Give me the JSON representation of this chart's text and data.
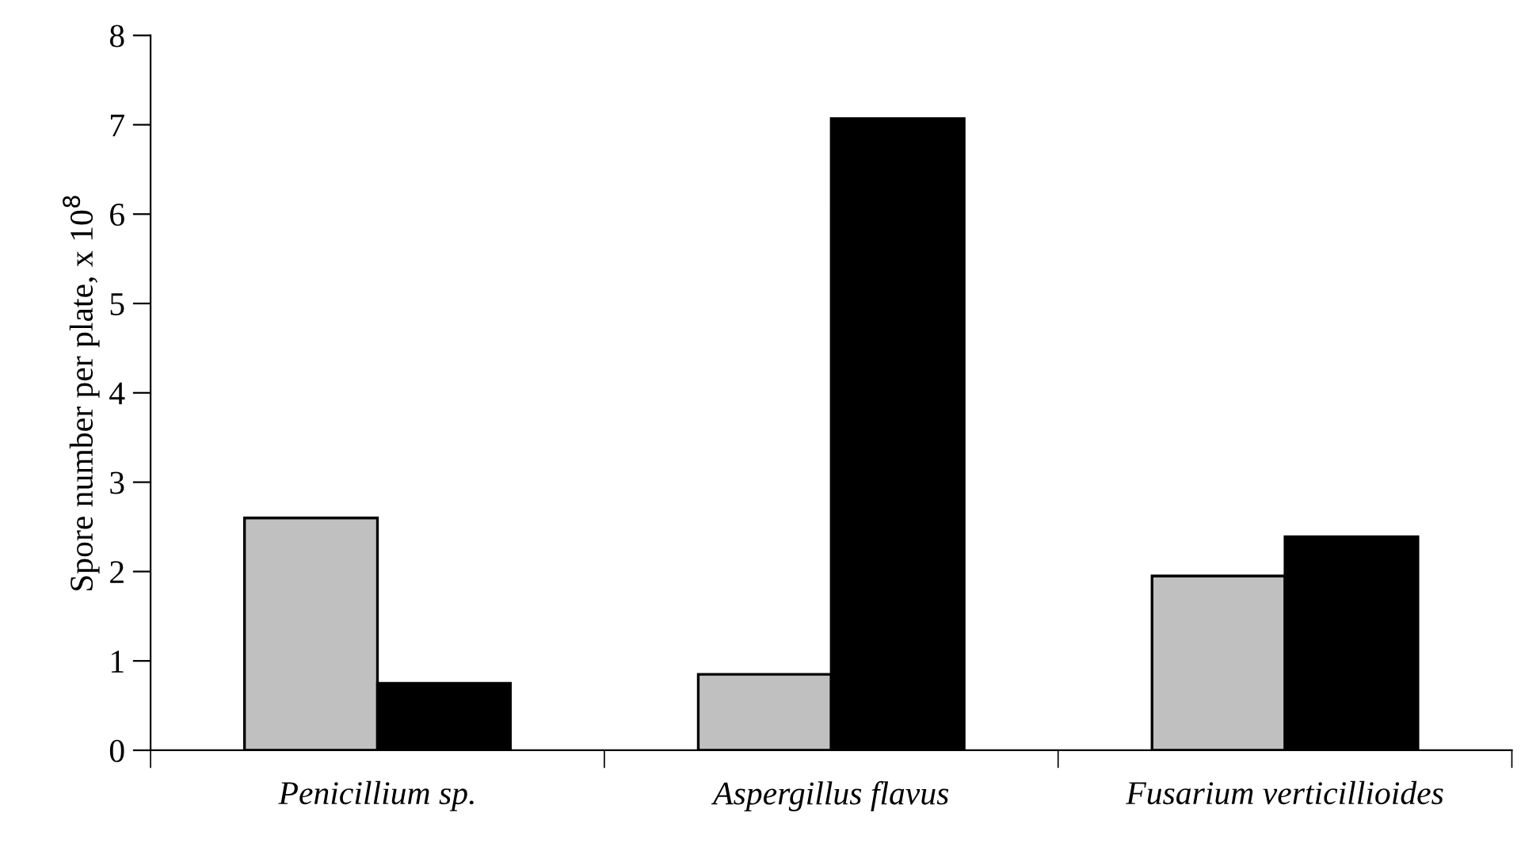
{
  "chart_data": {
    "type": "bar",
    "ylabel": "Spore number per plate, x 10$^{8}$",
    "categories": [
      "Penicillium sp.",
      "Aspergillus flavus",
      "Fusarium verticillioides"
    ],
    "series": [
      {
        "color": "#c0c0c0",
        "values": [
          2.6,
          0.85,
          1.95
        ]
      },
      {
        "color": "#000000",
        "values": [
          0.75,
          7.07,
          2.39
        ]
      }
    ],
    "ylim": [
      0,
      8
    ],
    "yticks": [
      0,
      1,
      2,
      3,
      4,
      5,
      6,
      7,
      8
    ]
  }
}
